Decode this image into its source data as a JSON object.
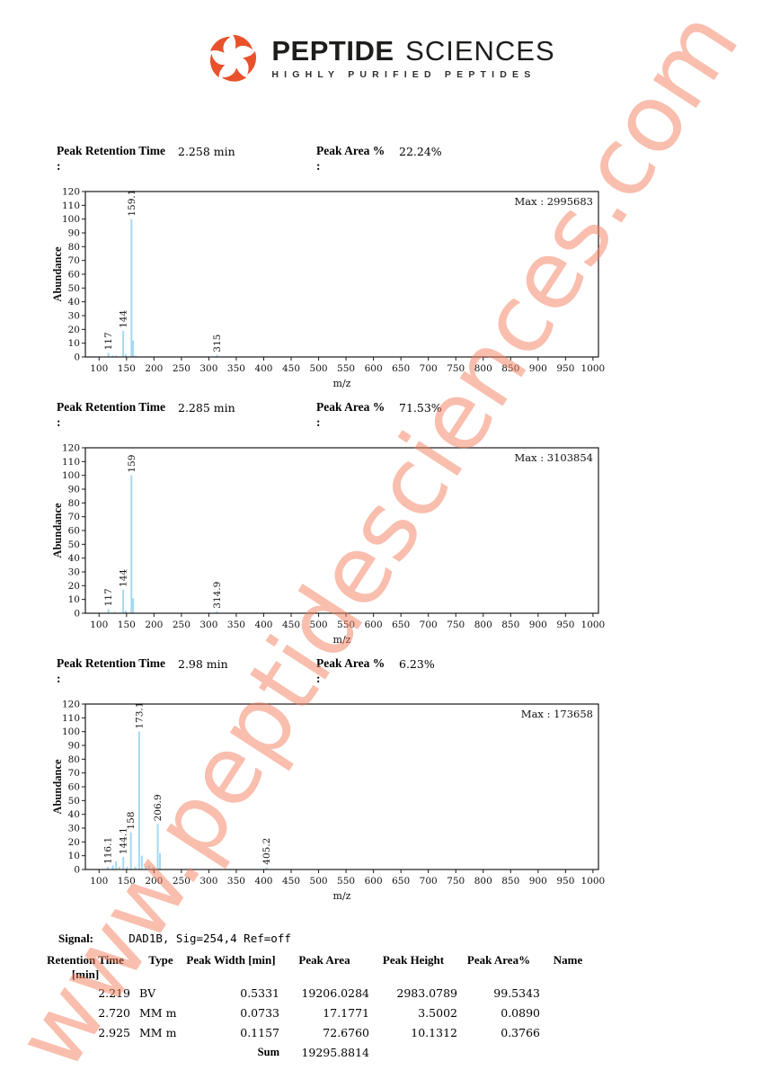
{
  "header": {
    "brand_primary": "PEPTIDE",
    "brand_secondary": "SCIENCES",
    "tagline": "HIGHLY PURIFIED PEPTIDES"
  },
  "watermark": "www.peptidesciences.com",
  "misc": {
    "colon": ":"
  },
  "colors": {
    "bar": "#a5d8f2",
    "accent_orange": "#e8512a",
    "watermark": "rgba(244,125,92,0.5)",
    "frame": "#1a1a1a"
  },
  "sections": [
    {
      "rt_label": "Peak Retention Time",
      "rt_value": "2.258 min",
      "area_label": "Peak Area %",
      "area_value": "22.24%"
    },
    {
      "rt_label": "Peak Retention Time",
      "rt_value": "2.285 min",
      "area_label": "Peak Area %",
      "area_value": "71.53%"
    },
    {
      "rt_label": "Peak Retention Time",
      "rt_value": "2.98 min",
      "area_label": "Peak Area %",
      "area_value": "6.23%"
    }
  ],
  "chart_data": [
    {
      "type": "bar",
      "title": "",
      "xlabel": "m/z",
      "ylabel": "Abundance",
      "xlim": [
        75,
        1010
      ],
      "ylim": [
        0,
        120
      ],
      "x_ticks": [
        100,
        150,
        200,
        250,
        300,
        350,
        400,
        450,
        500,
        550,
        600,
        650,
        700,
        750,
        800,
        850,
        900,
        950,
        1000
      ],
      "y_ticks": [
        0,
        10,
        20,
        30,
        40,
        50,
        60,
        70,
        80,
        90,
        100,
        110,
        120
      ],
      "max_label": "Max : 2995683",
      "grid": false,
      "peaks": [
        {
          "mz": 117,
          "h": 3,
          "label": "117"
        },
        {
          "mz": 125,
          "h": 1
        },
        {
          "mz": 131,
          "h": 1
        },
        {
          "mz": 144,
          "h": 19,
          "label": "144"
        },
        {
          "mz": 149,
          "h": 2
        },
        {
          "mz": 159.1,
          "h": 100,
          "label": "159.1"
        },
        {
          "mz": 162,
          "h": 12
        },
        {
          "mz": 167,
          "h": 1
        },
        {
          "mz": 315,
          "h": 1.5,
          "label": "315"
        }
      ]
    },
    {
      "type": "bar",
      "title": "",
      "xlabel": "m/z",
      "ylabel": "Abundance",
      "xlim": [
        75,
        1010
      ],
      "ylim": [
        0,
        120
      ],
      "x_ticks": [
        100,
        150,
        200,
        250,
        300,
        350,
        400,
        450,
        500,
        550,
        600,
        650,
        700,
        750,
        800,
        850,
        900,
        950,
        1000
      ],
      "y_ticks": [
        0,
        10,
        20,
        30,
        40,
        50,
        60,
        70,
        80,
        90,
        100,
        110,
        120
      ],
      "max_label": "Max : 3103854",
      "grid": false,
      "peaks": [
        {
          "mz": 117,
          "h": 3,
          "label": "117"
        },
        {
          "mz": 128,
          "h": 1
        },
        {
          "mz": 144,
          "h": 17,
          "label": "144"
        },
        {
          "mz": 149,
          "h": 2
        },
        {
          "mz": 159,
          "h": 100,
          "label": "159"
        },
        {
          "mz": 162,
          "h": 11
        },
        {
          "mz": 314.9,
          "h": 1.5,
          "label": "314.9"
        }
      ]
    },
    {
      "type": "bar",
      "title": "",
      "xlabel": "m/z",
      "ylabel": "Abundance",
      "xlim": [
        75,
        1010
      ],
      "ylim": [
        0,
        120
      ],
      "x_ticks": [
        100,
        150,
        200,
        250,
        300,
        350,
        400,
        450,
        500,
        550,
        600,
        650,
        700,
        750,
        800,
        850,
        900,
        950,
        1000
      ],
      "y_ticks": [
        0,
        10,
        20,
        30,
        40,
        50,
        60,
        70,
        80,
        90,
        100,
        110,
        120
      ],
      "max_label": "Max : 173658",
      "grid": false,
      "peaks": [
        {
          "mz": 116.1,
          "h": 2,
          "label": "116.1"
        },
        {
          "mz": 125,
          "h": 3
        },
        {
          "mz": 131,
          "h": 6
        },
        {
          "mz": 137,
          "h": 2
        },
        {
          "mz": 144.1,
          "h": 9,
          "label": "144.1"
        },
        {
          "mz": 151,
          "h": 2
        },
        {
          "mz": 158,
          "h": 27,
          "label": "158"
        },
        {
          "mz": 166,
          "h": 2
        },
        {
          "mz": 173.1,
          "h": 100,
          "label": "173.1"
        },
        {
          "mz": 178,
          "h": 10
        },
        {
          "mz": 185,
          "h": 2
        },
        {
          "mz": 191,
          "h": 3
        },
        {
          "mz": 199,
          "h": 2
        },
        {
          "mz": 206.9,
          "h": 33,
          "label": "206.9"
        },
        {
          "mz": 211,
          "h": 12
        },
        {
          "mz": 405.2,
          "h": 1.5,
          "label": "405.2"
        }
      ]
    }
  ],
  "signal": {
    "label": "Signal:",
    "value": "DAD1B, Sig=254,4  Ref=off"
  },
  "table": {
    "headers": {
      "rt": "Retention Time",
      "rt_unit": "[min]",
      "type": "Type",
      "width": "Peak Width [min]",
      "area": "Peak Area",
      "height": "Peak Height",
      "pct": "Peak Area%",
      "name": "Name"
    },
    "rows": [
      [
        "2.219",
        "BV",
        "0.5331",
        "19206.0284",
        "2983.0789",
        "99.5343",
        ""
      ],
      [
        "2.720",
        "MM m",
        "0.0733",
        "17.1771",
        "3.5002",
        "0.0890",
        ""
      ],
      [
        "2.925",
        "MM m",
        "0.1157",
        "72.6760",
        "10.1312",
        "0.3766",
        ""
      ]
    ],
    "sum_label": "Sum",
    "sum_value": "19295.8814"
  }
}
